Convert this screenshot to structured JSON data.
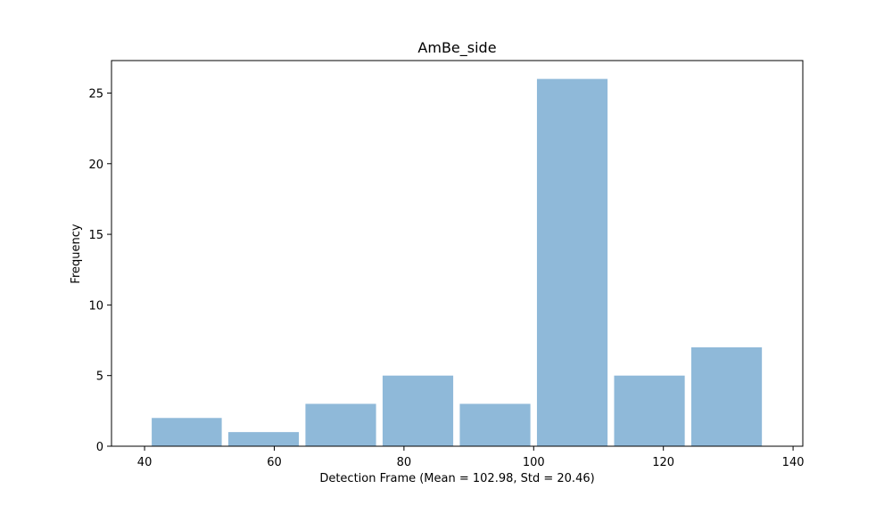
{
  "chart_data": {
    "type": "bar",
    "title": "AmBe_side",
    "xlabel": "Detection Frame (Mean = 102.98, Std = 20.46)",
    "ylabel": "Frequency",
    "bins": [
      {
        "start": 40.6,
        "end": 52.4,
        "value": 2
      },
      {
        "start": 52.4,
        "end": 64.3,
        "value": 1
      },
      {
        "start": 64.3,
        "end": 76.2,
        "value": 3
      },
      {
        "start": 76.2,
        "end": 88.1,
        "value": 5
      },
      {
        "start": 88.1,
        "end": 100.0,
        "value": 3
      },
      {
        "start": 100.0,
        "end": 111.9,
        "value": 26
      },
      {
        "start": 111.9,
        "end": 123.8,
        "value": 5
      },
      {
        "start": 123.8,
        "end": 135.7,
        "value": 7
      }
    ],
    "xlim": [
      34.9,
      141.5
    ],
    "ylim": [
      0,
      27.3
    ],
    "xticks": [
      40,
      60,
      80,
      100,
      120,
      140
    ],
    "yticks": [
      0,
      5,
      10,
      15,
      20,
      25
    ],
    "bar_color": "#8fb9d9",
    "grid": false,
    "legend": false
  }
}
